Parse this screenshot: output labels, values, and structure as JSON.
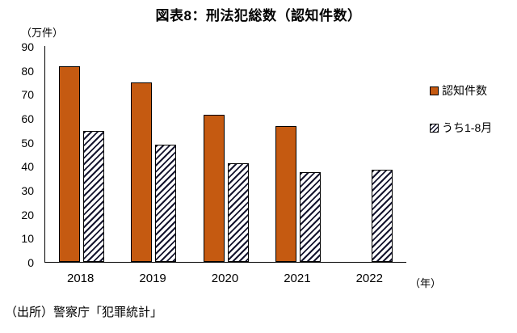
{
  "title": "図表8：刑法犯総数（認知件数）",
  "y_unit_label": "（万件）",
  "x_unit_label": "（年）",
  "source": "（出所）警察庁「犯罪統計」",
  "colors": {
    "bar_fill": "#C55A11",
    "bar_border": "#000000",
    "hatch_line": "#14142e",
    "background": "#ffffff"
  },
  "legend": {
    "position": "right",
    "items": [
      {
        "label": "認知件数",
        "swatch": "solid"
      },
      {
        "label": "うち1-8月",
        "swatch": "hatch"
      }
    ]
  },
  "chart_data": {
    "type": "bar",
    "title": "図表8：刑法犯総数（認知件数）",
    "categories": [
      "2018",
      "2019",
      "2020",
      "2021",
      "2022"
    ],
    "series": [
      {
        "name": "認知件数",
        "slug": "total",
        "style": "solid",
        "values": [
          81.7,
          74.9,
          61.4,
          56.8,
          null
        ]
      },
      {
        "name": "うち1-8月",
        "slug": "jan-aug",
        "style": "hatch",
        "values": [
          54.5,
          49.0,
          41.0,
          37.5,
          38.5
        ]
      }
    ],
    "xlabel": "（年）",
    "ylabel": "（万件）",
    "ylim": [
      0,
      90
    ],
    "ytick_step": 10,
    "grid": false,
    "legend_position": "right"
  }
}
